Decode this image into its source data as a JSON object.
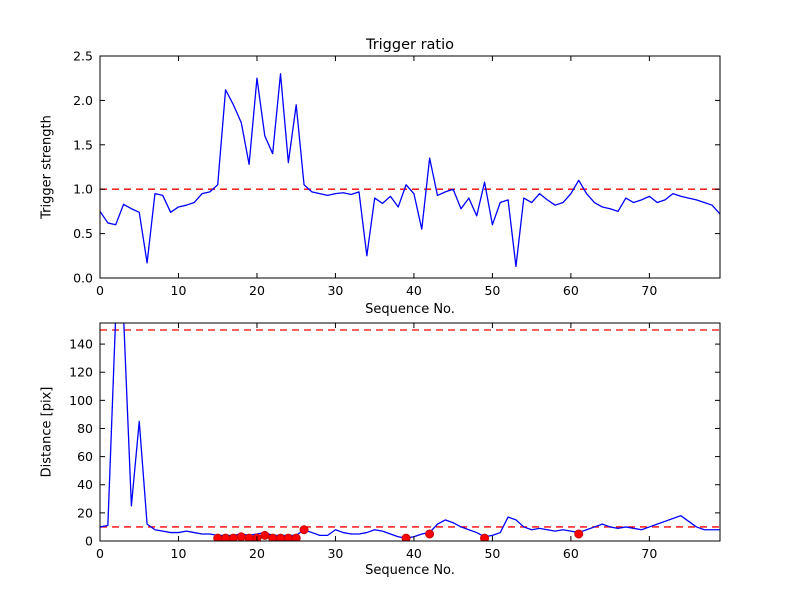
{
  "chart_data": [
    {
      "type": "line",
      "title": "Trigger ratio",
      "xlabel": "Sequence No.",
      "ylabel": "Trigger strength",
      "xlim": [
        0,
        79
      ],
      "ylim": [
        0.0,
        2.5
      ],
      "xticks": [
        0,
        10,
        20,
        30,
        40,
        50,
        60,
        70
      ],
      "xtick_labels": [
        "0",
        "10",
        "20",
        "30",
        "40",
        "50",
        "60",
        "70"
      ],
      "yticks": [
        0.0,
        0.5,
        1.0,
        1.5,
        2.0,
        2.5
      ],
      "ytick_labels": [
        "0.0",
        "0.5",
        "1.0",
        "1.5",
        "2.0",
        "2.5"
      ],
      "grid": false,
      "line_color": "#0000ff",
      "threshold_lines": [
        {
          "y": 1.0,
          "color": "#ff0000",
          "style": "dashed"
        }
      ],
      "x": {
        "start": 0,
        "step": 1
      },
      "y": [
        0.75,
        0.62,
        0.6,
        0.83,
        0.78,
        0.74,
        0.17,
        0.95,
        0.93,
        0.74,
        0.8,
        0.82,
        0.85,
        0.95,
        0.97,
        1.05,
        2.12,
        1.95,
        1.75,
        1.28,
        2.25,
        1.6,
        1.4,
        2.3,
        1.3,
        1.95,
        1.05,
        0.97,
        0.95,
        0.93,
        0.95,
        0.96,
        0.94,
        0.97,
        0.25,
        0.9,
        0.84,
        0.92,
        0.8,
        1.05,
        0.95,
        0.55,
        1.35,
        0.93,
        0.97,
        1.0,
        0.78,
        0.9,
        0.7,
        1.08,
        0.6,
        0.85,
        0.88,
        0.13,
        0.9,
        0.85,
        0.95,
        0.88,
        0.82,
        0.85,
        0.95,
        1.1,
        0.95,
        0.85,
        0.8,
        0.78,
        0.75,
        0.9,
        0.85,
        0.88,
        0.92,
        0.85,
        0.88,
        0.95,
        0.92,
        0.9,
        0.88,
        0.85,
        0.82,
        0.72
      ]
    },
    {
      "type": "line+scatter",
      "title": "",
      "xlabel": "Sequence No.",
      "ylabel": "Distance [pix]",
      "xlim": [
        0,
        79
      ],
      "ylim": [
        0,
        155
      ],
      "xticks": [
        0,
        10,
        20,
        30,
        40,
        50,
        60,
        70
      ],
      "xtick_labels": [
        "0",
        "10",
        "20",
        "30",
        "40",
        "50",
        "60",
        "70"
      ],
      "yticks": [
        0,
        20,
        40,
        60,
        80,
        100,
        120,
        140
      ],
      "ytick_labels": [
        "0",
        "20",
        "40",
        "60",
        "80",
        "100",
        "120",
        "140"
      ],
      "grid": false,
      "line_color": "#0000ff",
      "threshold_lines": [
        {
          "y": 150,
          "color": "#ff0000",
          "style": "dashed"
        },
        {
          "y": 10,
          "color": "#ff0000",
          "style": "dashed"
        }
      ],
      "x": {
        "start": 0,
        "step": 1
      },
      "y": [
        10,
        11,
        160,
        160,
        25,
        85,
        12,
        8,
        7,
        6,
        6,
        7,
        6,
        5,
        5,
        4,
        4,
        4,
        5,
        4,
        5,
        6,
        4,
        4,
        4,
        4,
        8,
        6,
        4,
        4,
        8,
        6,
        5,
        5,
        6,
        8,
        7,
        5,
        3,
        2,
        3,
        5,
        6,
        12,
        15,
        13,
        10,
        8,
        6,
        3,
        4,
        6,
        17,
        15,
        10,
        8,
        9,
        8,
        7,
        8,
        7,
        6,
        8,
        10,
        12,
        10,
        9,
        10,
        9,
        8,
        10,
        12,
        14,
        16,
        18,
        14,
        10,
        8,
        8,
        8
      ],
      "scatter": {
        "color": "#ff0000",
        "edge_color": "#cc0000",
        "points": [
          [
            15,
            2
          ],
          [
            16,
            2
          ],
          [
            17,
            2
          ],
          [
            18,
            3
          ],
          [
            19,
            2
          ],
          [
            20,
            2
          ],
          [
            21,
            4
          ],
          [
            22,
            2
          ],
          [
            23,
            2
          ],
          [
            24,
            2
          ],
          [
            25,
            2
          ],
          [
            26,
            8
          ],
          [
            39,
            2
          ],
          [
            42,
            5
          ],
          [
            49,
            2
          ],
          [
            61,
            5
          ]
        ]
      }
    }
  ]
}
